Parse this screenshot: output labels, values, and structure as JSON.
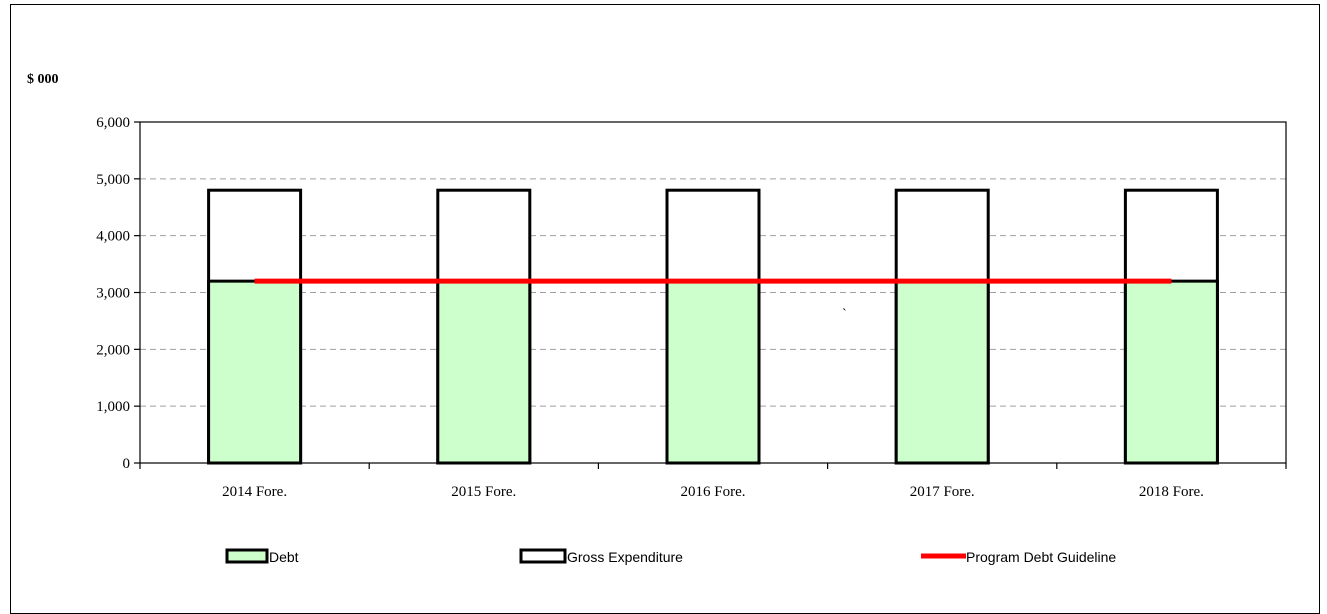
{
  "chart_data": {
    "type": "bar",
    "y_unit_label": "$ 000",
    "categories": [
      "2014 Fore.",
      "2015 Fore.",
      "2016 Fore.",
      "2017 Fore.",
      "2018 Fore."
    ],
    "series": [
      {
        "name": "Debt",
        "kind": "bar",
        "values": [
          3200,
          3200,
          3200,
          3200,
          3200
        ],
        "color": "#ccffcc"
      },
      {
        "name": "Gross Expenditure",
        "kind": "bar",
        "values": [
          4800,
          4800,
          4800,
          4800,
          4800
        ],
        "color": "#ffffff"
      },
      {
        "name": "Program Debt Guideline",
        "kind": "line",
        "values": [
          3200,
          3200,
          3200,
          3200,
          3200
        ],
        "color": "#ff0000"
      }
    ],
    "ylim": [
      0,
      6000
    ],
    "y_ticks": [
      0,
      1000,
      2000,
      3000,
      4000,
      5000,
      6000
    ],
    "y_tick_labels": [
      "0",
      "1,000",
      "2,000",
      "3,000",
      "4,000",
      "5,000",
      "6,000"
    ],
    "grid": "horizontal dashed",
    "legend_position": "bottom",
    "annotation": "`"
  }
}
